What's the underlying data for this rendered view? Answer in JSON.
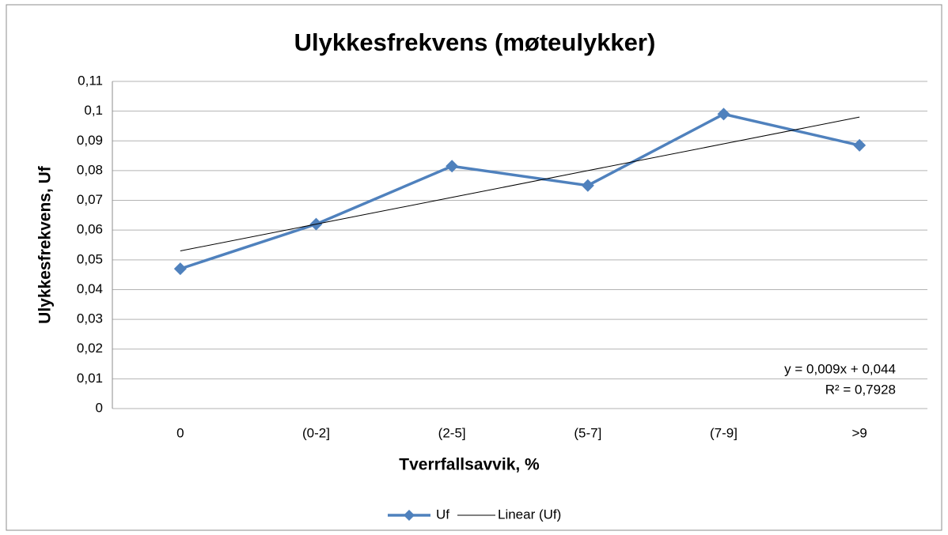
{
  "chart_data": {
    "type": "line",
    "title": "Ulykkesfrekvens (møteulykker)",
    "x_label": "Tverrfallsavvik, %",
    "y_label": "Ulykkesfrekvens, Uf",
    "categories": [
      "0",
      "(0-2]",
      "(2-5]",
      "(5-7]",
      "(7-9]",
      ">9"
    ],
    "series": [
      {
        "name": "Uf",
        "color": "#4f81bd",
        "values": [
          0.047,
          0.062,
          0.0815,
          0.075,
          0.099,
          0.0885
        ]
      },
      {
        "name": "Linear (Uf)",
        "color": "#000000",
        "values": [
          0.053,
          0.062,
          0.071,
          0.08,
          0.089,
          0.098
        ]
      }
    ],
    "annotations": [
      "y = 0,009x + 0,044",
      "R² = 0,7928"
    ],
    "ylim": [
      0,
      0.11
    ],
    "yticks": [
      0,
      {
        "value": 0.01,
        "label": "0,01"
      },
      {
        "value": 0.02,
        "label": "0,02"
      },
      {
        "value": 0.03,
        "label": "0,03"
      },
      {
        "value": 0.04,
        "label": "0,04"
      },
      {
        "value": 0.05,
        "label": "0,05"
      },
      {
        "value": 0.06,
        "label": "0,06"
      },
      {
        "value": 0.07,
        "label": "0,07"
      },
      {
        "value": 0.08,
        "label": "0,08"
      },
      {
        "value": 0.09,
        "label": "0,09"
      },
      {
        "value": 0.1,
        "label": "0,1"
      },
      {
        "value": 0.11,
        "label": "0,11"
      }
    ],
    "grid": true,
    "legend": "bottom"
  }
}
